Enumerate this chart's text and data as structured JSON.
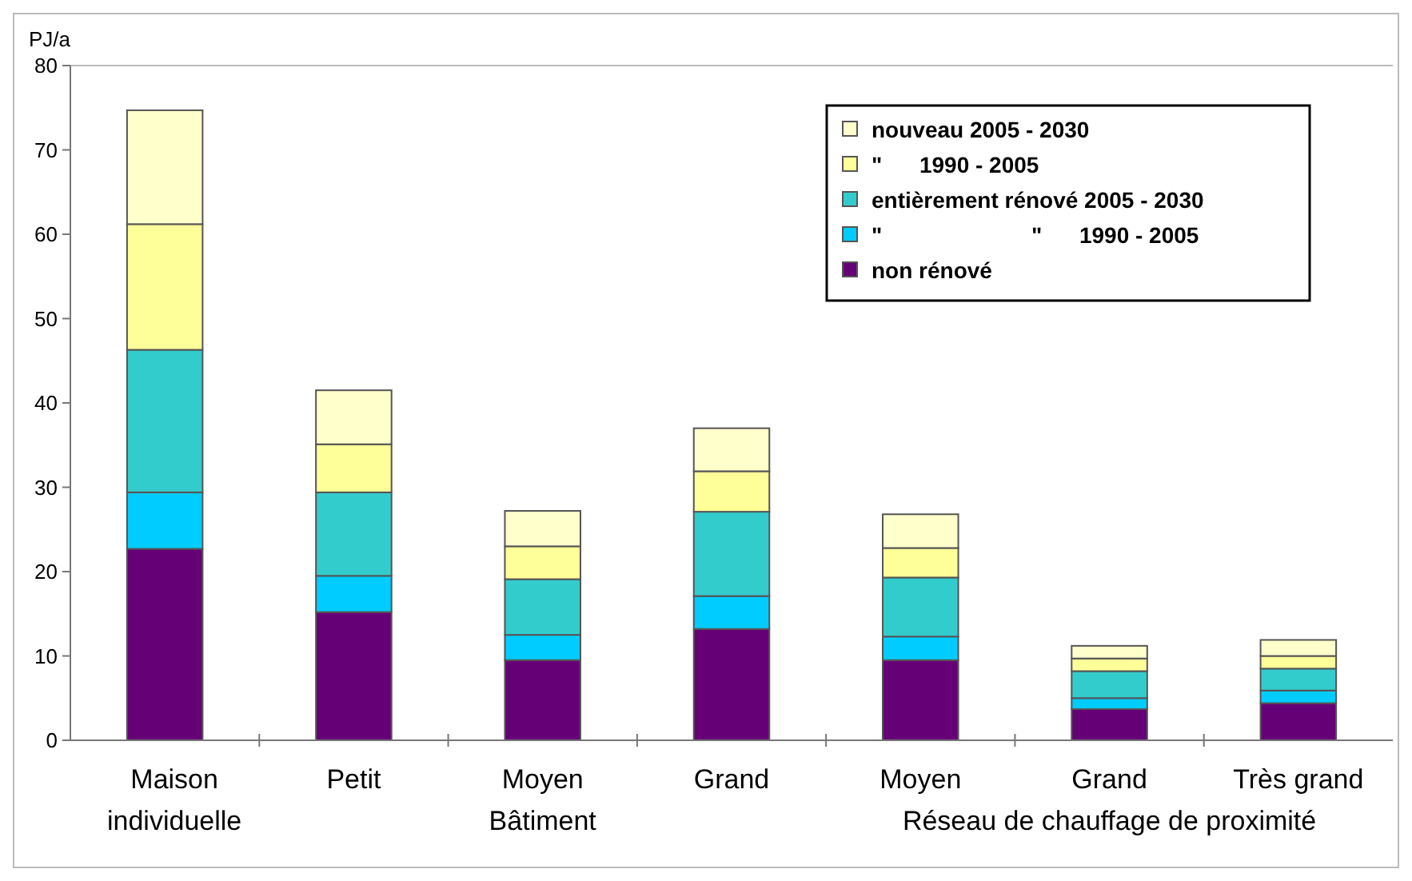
{
  "chart_data": {
    "type": "bar",
    "stacked": true,
    "ylabel": "PJ/a",
    "categories": [
      "Maison individuelle",
      "Petit",
      "Moyen",
      "Grand",
      "Moyen",
      "Grand",
      "Très grand"
    ],
    "series": [
      {
        "name": "non rénové",
        "color": "#660077",
        "values": [
          22.7,
          15.2,
          9.5,
          13.2,
          9.5,
          3.7,
          4.4
        ]
      },
      {
        "name": "\"                        \"      1990 - 2005",
        "color": "#00ccff",
        "values": [
          6.7,
          4.3,
          3.0,
          3.9,
          2.8,
          1.3,
          1.5
        ]
      },
      {
        "name": "entièrement rénové 2005 - 2030",
        "color": "#33cccc",
        "values": [
          16.9,
          9.9,
          6.6,
          10.0,
          7.0,
          3.2,
          2.6
        ]
      },
      {
        "name": "\"      1990 - 2005",
        "color": "#ffff99",
        "values": [
          14.9,
          5.7,
          3.9,
          4.8,
          3.5,
          1.5,
          1.5
        ]
      },
      {
        "name": "nouveau 2005 - 2030",
        "color": "#ffffcc",
        "values": [
          13.5,
          6.4,
          4.2,
          5.1,
          4.0,
          1.5,
          1.9
        ]
      }
    ],
    "ylim": [
      0,
      80
    ],
    "yticks": [
      0,
      10,
      20,
      30,
      40,
      50,
      60,
      70,
      80
    ],
    "grid": false,
    "legend": "top right",
    "annotations": [
      "Bâtiment",
      "Réseau de chauffage de proximité"
    ]
  }
}
